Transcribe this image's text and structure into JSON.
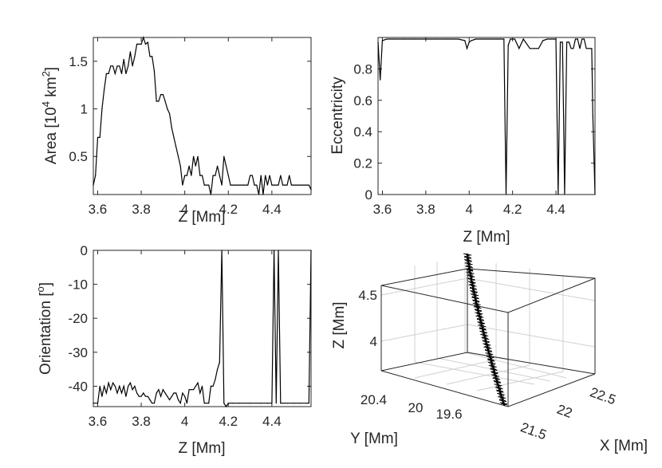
{
  "chart_data": [
    {
      "type": "line",
      "xlabel": "Z [Mm]",
      "ylabel_parts": [
        "Area [10",
        "4",
        " km",
        "2",
        "]"
      ],
      "xlim": [
        3.58,
        4.58
      ],
      "ylim": [
        0.1,
        1.75
      ],
      "xticks": [
        3.6,
        3.8,
        4.0,
        4.2,
        4.4
      ],
      "xtick_labels": [
        "3.6",
        "3.8",
        "4",
        "4.2",
        "4.4"
      ],
      "yticks": [
        0.5,
        1.0,
        1.5
      ],
      "ytick_labels": [
        "0.5",
        "1",
        "1.5"
      ],
      "series": [
        {
          "x": [
            3.58,
            3.59,
            3.6,
            3.61,
            3.62,
            3.63,
            3.64,
            3.65,
            3.66,
            3.67,
            3.68,
            3.69,
            3.7,
            3.71,
            3.72,
            3.73,
            3.74,
            3.75,
            3.76,
            3.77,
            3.78,
            3.79,
            3.8,
            3.81,
            3.82,
            3.83,
            3.84,
            3.85,
            3.86,
            3.87,
            3.88,
            3.89,
            3.9,
            3.91,
            3.92,
            3.93,
            3.94,
            3.95,
            3.96,
            3.97,
            3.98,
            3.99,
            4.0,
            4.01,
            4.02,
            4.03,
            4.04,
            4.05,
            4.06,
            4.07,
            4.08,
            4.09,
            4.1,
            4.11,
            4.12,
            4.13,
            4.14,
            4.15,
            4.16,
            4.17,
            4.18,
            4.19,
            4.2,
            4.21,
            4.22,
            4.23,
            4.24,
            4.25,
            4.26,
            4.27,
            4.28,
            4.29,
            4.3,
            4.31,
            4.32,
            4.33,
            4.34,
            4.35,
            4.36,
            4.37,
            4.38,
            4.39,
            4.4,
            4.41,
            4.42,
            4.43,
            4.44,
            4.45,
            4.46,
            4.47,
            4.48,
            4.49,
            4.5,
            4.51,
            4.52,
            4.53,
            4.54,
            4.55,
            4.56,
            4.57,
            4.58
          ],
          "y": [
            0.2,
            0.3,
            0.7,
            0.7,
            1.0,
            1.2,
            1.37,
            1.37,
            1.45,
            1.45,
            1.37,
            1.45,
            1.45,
            1.37,
            1.52,
            1.37,
            1.45,
            1.6,
            1.45,
            1.55,
            1.68,
            1.68,
            1.68,
            1.75,
            1.68,
            1.7,
            1.55,
            1.55,
            1.4,
            1.08,
            1.08,
            1.15,
            1.15,
            1.08,
            1.0,
            0.95,
            0.8,
            0.7,
            0.6,
            0.5,
            0.4,
            0.2,
            0.3,
            0.3,
            0.4,
            0.3,
            0.5,
            0.4,
            0.5,
            0.3,
            0.3,
            0.2,
            0.2,
            0.2,
            0.1,
            0.3,
            0.3,
            0.4,
            0.3,
            0.2,
            0.5,
            0.4,
            0.3,
            0.2,
            0.2,
            0.2,
            0.2,
            0.2,
            0.2,
            0.2,
            0.2,
            0.2,
            0.3,
            0.3,
            0.2,
            0.2,
            0.1,
            0.3,
            0.1,
            0.3,
            0.2,
            0.3,
            0.2,
            0.2,
            0.2,
            0.2,
            0.3,
            0.2,
            0.2,
            0.2,
            0.3,
            0.2,
            0.2,
            0.2,
            0.2,
            0.2,
            0.2,
            0.2,
            0.2,
            0.2,
            0.15
          ]
        }
      ]
    },
    {
      "type": "line",
      "xlabel": "Z [Mm]",
      "ylabel": "Eccentricity",
      "xlim": [
        3.58,
        4.58
      ],
      "ylim": [
        0,
        1.0
      ],
      "xticks": [
        3.6,
        3.8,
        4.0,
        4.2,
        4.4
      ],
      "xtick_labels": [
        "3.6",
        "3.8",
        "4",
        "4.2",
        "4.4"
      ],
      "yticks": [
        0,
        0.2,
        0.4,
        0.6,
        0.8
      ],
      "ytick_labels": [
        "0",
        "0.2",
        "0.4",
        "0.6",
        "0.8"
      ],
      "series": [
        {
          "x": [
            3.58,
            3.59,
            3.6,
            3.62,
            3.65,
            3.7,
            3.75,
            3.8,
            3.85,
            3.9,
            3.95,
            3.98,
            3.99,
            4.0,
            4.01,
            4.03,
            4.06,
            4.1,
            4.13,
            4.15,
            4.16,
            4.165,
            4.17,
            4.18,
            4.19,
            4.2,
            4.21,
            4.23,
            4.25,
            4.28,
            4.3,
            4.31,
            4.32,
            4.34,
            4.36,
            4.38,
            4.39,
            4.4,
            4.405,
            4.41,
            4.42,
            4.43,
            4.435,
            4.44,
            4.45,
            4.46,
            4.47,
            4.48,
            4.49,
            4.5,
            4.51,
            4.52,
            4.53,
            4.54,
            4.55,
            4.56,
            4.565,
            4.57,
            4.58
          ],
          "y": [
            0.97,
            0.73,
            0.98,
            0.99,
            0.99,
            0.99,
            0.99,
            0.99,
            0.99,
            0.99,
            0.99,
            0.98,
            0.93,
            0.97,
            0.98,
            0.99,
            0.99,
            0.99,
            0.99,
            0.99,
            0.99,
            0.5,
            0.0,
            0.95,
            0.99,
            0.99,
            0.99,
            0.93,
            0.99,
            0.93,
            0.93,
            0.93,
            0.93,
            0.98,
            0.99,
            0.99,
            0.99,
            0.99,
            0.5,
            0.0,
            0.97,
            0.97,
            0.5,
            0.0,
            0.97,
            0.97,
            0.93,
            0.93,
            0.99,
            0.99,
            0.93,
            0.99,
            0.99,
            0.93,
            0.93,
            0.93,
            0.93,
            0.5,
            0.0
          ]
        }
      ]
    },
    {
      "type": "line",
      "xlabel": "Z [Mm]",
      "ylabel_parts": [
        "Orientation [",
        "o",
        "]"
      ],
      "xlim": [
        3.58,
        4.58
      ],
      "ylim": [
        -46,
        0
      ],
      "xticks": [
        3.6,
        3.8,
        4.0,
        4.2,
        4.4
      ],
      "xtick_labels": [
        "3.6",
        "3.8",
        "4",
        "4.2",
        "4.4"
      ],
      "yticks": [
        0,
        -10,
        -20,
        -30,
        -40
      ],
      "ytick_labels": [
        "0",
        "-10",
        "-20",
        "-30",
        "-40"
      ],
      "series": [
        {
          "x": [
            3.58,
            3.6,
            3.61,
            3.62,
            3.63,
            3.64,
            3.65,
            3.66,
            3.67,
            3.68,
            3.69,
            3.7,
            3.71,
            3.72,
            3.73,
            3.74,
            3.75,
            3.76,
            3.77,
            3.78,
            3.79,
            3.8,
            3.81,
            3.82,
            3.83,
            3.84,
            3.85,
            3.86,
            3.87,
            3.88,
            3.89,
            3.9,
            3.91,
            3.92,
            3.93,
            3.94,
            3.95,
            3.96,
            3.97,
            3.98,
            3.99,
            4.0,
            4.01,
            4.02,
            4.03,
            4.04,
            4.05,
            4.06,
            4.07,
            4.08,
            4.09,
            4.1,
            4.11,
            4.12,
            4.13,
            4.14,
            4.15,
            4.16,
            4.17,
            4.18,
            4.19,
            4.2,
            4.22,
            4.25,
            4.3,
            4.35,
            4.38,
            4.4,
            4.41,
            4.42,
            4.43,
            4.44,
            4.45,
            4.46,
            4.47,
            4.5,
            4.53,
            4.56,
            4.57,
            4.58
          ],
          "y": [
            -45,
            -45,
            -40,
            -43,
            -40,
            -42,
            -39,
            -41,
            -39,
            -40,
            -42,
            -40,
            -42,
            -40,
            -43,
            -40,
            -39,
            -41,
            -40,
            -42,
            -43,
            -43,
            -42,
            -43,
            -43,
            -44,
            -45,
            -45,
            -42,
            -41,
            -43,
            -41,
            -42,
            -43,
            -44,
            -43,
            -42,
            -42,
            -44,
            -45,
            -42,
            -43,
            -45,
            -41,
            -41,
            -41,
            -40,
            -39,
            -42,
            -40,
            -45,
            -45,
            -45,
            -40,
            -40,
            -38,
            -35,
            -33,
            0,
            -45,
            -46,
            -45,
            -45,
            -45,
            -45,
            -45,
            -45,
            -45,
            0,
            -45,
            0,
            -45,
            -45,
            -45,
            -45,
            -45,
            -45,
            -45,
            -45,
            0
          ]
        }
      ]
    },
    {
      "type": "line",
      "subtype": "3d",
      "xlabel": "X [Mm]",
      "ylabel": "Y [Mm]",
      "zlabel": "Z [Mm]",
      "xtick_labels": [
        "21.5",
        "22",
        "22.5"
      ],
      "ytick_labels": [
        "20.4",
        "20",
        "19.6"
      ],
      "ztick_labels": [
        "4",
        "4.5"
      ],
      "grid": true
    }
  ]
}
